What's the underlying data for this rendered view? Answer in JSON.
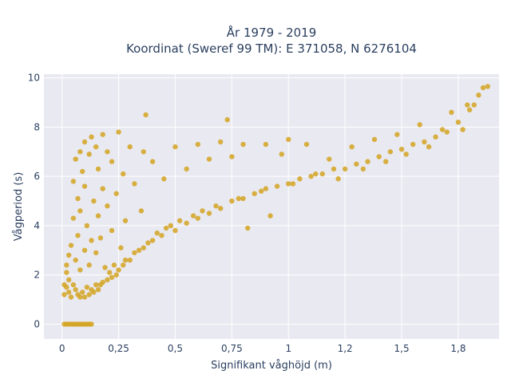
{
  "chart_data": {
    "type": "scatter",
    "title_line1": "År 1979 - 2019",
    "title_line2": "Koordinat (Sweref 99 TM): E 371058, N 6276104",
    "xlabel": "Signifikant våghöjd (m)",
    "ylabel": "Vågperiod (s)",
    "xlim": [
      -0.08,
      1.93
    ],
    "ylim": [
      -0.6,
      10.15
    ],
    "x_ticks": [
      {
        "value": 0,
        "label": "0"
      },
      {
        "value": 0.25,
        "label": "0,25"
      },
      {
        "value": 0.5,
        "label": "0,5"
      },
      {
        "value": 0.75,
        "label": "0,75"
      },
      {
        "value": 1,
        "label": "1"
      },
      {
        "value": 1.25,
        "label": "1,2"
      },
      {
        "value": 1.5,
        "label": "1,5"
      },
      {
        "value": 1.75,
        "label": "1,8"
      }
    ],
    "y_ticks": [
      {
        "value": 0,
        "label": "0"
      },
      {
        "value": 2,
        "label": "2"
      },
      {
        "value": 4,
        "label": "4"
      },
      {
        "value": 6,
        "label": "6"
      },
      {
        "value": 8,
        "label": "8"
      },
      {
        "value": 10,
        "label": "10"
      }
    ],
    "grid": true,
    "marker_color": "#D4A321",
    "plot_bg": "#E9E9F1",
    "series": [
      {
        "points": [
          [
            0.01,
            0
          ],
          [
            0.02,
            0
          ],
          [
            0.03,
            0
          ],
          [
            0.04,
            0
          ],
          [
            0.05,
            0
          ],
          [
            0.06,
            0
          ],
          [
            0.07,
            0
          ],
          [
            0.08,
            0
          ],
          [
            0.09,
            0
          ],
          [
            0.1,
            0
          ],
          [
            0.11,
            0
          ],
          [
            0.12,
            0
          ],
          [
            0.13,
            0
          ],
          [
            0.01,
            1.2
          ],
          [
            0.01,
            1.6
          ],
          [
            0.02,
            1.5
          ],
          [
            0.02,
            2.1
          ],
          [
            0.02,
            2.4
          ],
          [
            0.03,
            1.3
          ],
          [
            0.03,
            1.8
          ],
          [
            0.03,
            2.8
          ],
          [
            0.04,
            1.1
          ],
          [
            0.04,
            3.2
          ],
          [
            0.05,
            1.6
          ],
          [
            0.05,
            4.3
          ],
          [
            0.05,
            5.8
          ],
          [
            0.06,
            1.4
          ],
          [
            0.06,
            2.6
          ],
          [
            0.06,
            6.7
          ],
          [
            0.07,
            1.2
          ],
          [
            0.07,
            3.6
          ],
          [
            0.07,
            5.1
          ],
          [
            0.08,
            1.1
          ],
          [
            0.08,
            2.2
          ],
          [
            0.08,
            4.6
          ],
          [
            0.08,
            7.0
          ],
          [
            0.09,
            1.3
          ],
          [
            0.09,
            6.2
          ],
          [
            0.1,
            1.1
          ],
          [
            0.1,
            3.0
          ],
          [
            0.1,
            5.6
          ],
          [
            0.1,
            7.4
          ],
          [
            0.11,
            1.5
          ],
          [
            0.11,
            4.0
          ],
          [
            0.12,
            1.2
          ],
          [
            0.12,
            2.4
          ],
          [
            0.12,
            6.9
          ],
          [
            0.13,
            1.4
          ],
          [
            0.13,
            3.4
          ],
          [
            0.13,
            7.6
          ],
          [
            0.14,
            1.3
          ],
          [
            0.14,
            5.0
          ],
          [
            0.15,
            1.6
          ],
          [
            0.15,
            2.9
          ],
          [
            0.15,
            7.2
          ],
          [
            0.16,
            1.4
          ],
          [
            0.16,
            4.4
          ],
          [
            0.16,
            6.3
          ],
          [
            0.17,
            1.6
          ],
          [
            0.17,
            3.5
          ],
          [
            0.18,
            1.7
          ],
          [
            0.18,
            5.5
          ],
          [
            0.18,
            7.7
          ],
          [
            0.19,
            2.3
          ],
          [
            0.2,
            1.8
          ],
          [
            0.2,
            4.8
          ],
          [
            0.2,
            7.0
          ],
          [
            0.21,
            2.1
          ],
          [
            0.22,
            1.9
          ],
          [
            0.22,
            3.8
          ],
          [
            0.22,
            6.6
          ],
          [
            0.23,
            2.4
          ],
          [
            0.24,
            2.0
          ],
          [
            0.24,
            5.3
          ],
          [
            0.25,
            2.2
          ],
          [
            0.25,
            7.8
          ],
          [
            0.26,
            3.1
          ],
          [
            0.27,
            2.4
          ],
          [
            0.27,
            6.1
          ],
          [
            0.28,
            2.6
          ],
          [
            0.28,
            4.2
          ],
          [
            0.3,
            2.6
          ],
          [
            0.3,
            7.2
          ],
          [
            0.32,
            2.9
          ],
          [
            0.32,
            5.7
          ],
          [
            0.34,
            3.0
          ],
          [
            0.35,
            4.6
          ],
          [
            0.36,
            3.1
          ],
          [
            0.36,
            7.0
          ],
          [
            0.37,
            8.5
          ],
          [
            0.38,
            3.3
          ],
          [
            0.4,
            3.4
          ],
          [
            0.4,
            6.6
          ],
          [
            0.42,
            3.7
          ],
          [
            0.44,
            3.6
          ],
          [
            0.45,
            5.9
          ],
          [
            0.46,
            3.9
          ],
          [
            0.48,
            4.0
          ],
          [
            0.5,
            3.8
          ],
          [
            0.5,
            7.2
          ],
          [
            0.52,
            4.2
          ],
          [
            0.55,
            4.1
          ],
          [
            0.55,
            6.3
          ],
          [
            0.58,
            4.4
          ],
          [
            0.6,
            4.3
          ],
          [
            0.6,
            7.3
          ],
          [
            0.62,
            4.6
          ],
          [
            0.65,
            4.5
          ],
          [
            0.65,
            6.7
          ],
          [
            0.68,
            4.8
          ],
          [
            0.7,
            4.7
          ],
          [
            0.7,
            7.4
          ],
          [
            0.73,
            8.3
          ],
          [
            0.75,
            5.0
          ],
          [
            0.75,
            6.8
          ],
          [
            0.78,
            5.1
          ],
          [
            0.8,
            5.1
          ],
          [
            0.8,
            7.3
          ],
          [
            0.82,
            3.9
          ],
          [
            0.85,
            5.3
          ],
          [
            0.88,
            5.4
          ],
          [
            0.9,
            5.5
          ],
          [
            0.9,
            7.3
          ],
          [
            0.92,
            4.4
          ],
          [
            0.95,
            5.6
          ],
          [
            0.97,
            6.9
          ],
          [
            1.0,
            5.7
          ],
          [
            1.0,
            7.5
          ],
          [
            1.02,
            5.7
          ],
          [
            1.05,
            5.9
          ],
          [
            1.08,
            7.3
          ],
          [
            1.1,
            6.0
          ],
          [
            1.12,
            6.1
          ],
          [
            1.15,
            6.1
          ],
          [
            1.18,
            6.7
          ],
          [
            1.2,
            6.3
          ],
          [
            1.22,
            5.9
          ],
          [
            1.25,
            6.3
          ],
          [
            1.28,
            7.2
          ],
          [
            1.3,
            6.5
          ],
          [
            1.33,
            6.3
          ],
          [
            1.35,
            6.6
          ],
          [
            1.38,
            7.5
          ],
          [
            1.4,
            6.8
          ],
          [
            1.43,
            6.6
          ],
          [
            1.45,
            7.0
          ],
          [
            1.48,
            7.7
          ],
          [
            1.5,
            7.1
          ],
          [
            1.52,
            6.9
          ],
          [
            1.55,
            7.3
          ],
          [
            1.58,
            8.1
          ],
          [
            1.6,
            7.4
          ],
          [
            1.62,
            7.2
          ],
          [
            1.65,
            7.6
          ],
          [
            1.68,
            7.9
          ],
          [
            1.7,
            7.8
          ],
          [
            1.72,
            8.6
          ],
          [
            1.75,
            8.2
          ],
          [
            1.77,
            7.9
          ],
          [
            1.79,
            8.9
          ],
          [
            1.8,
            8.7
          ],
          [
            1.82,
            8.9
          ],
          [
            1.84,
            9.3
          ],
          [
            1.86,
            9.6
          ],
          [
            1.88,
            9.65
          ]
        ]
      }
    ]
  }
}
